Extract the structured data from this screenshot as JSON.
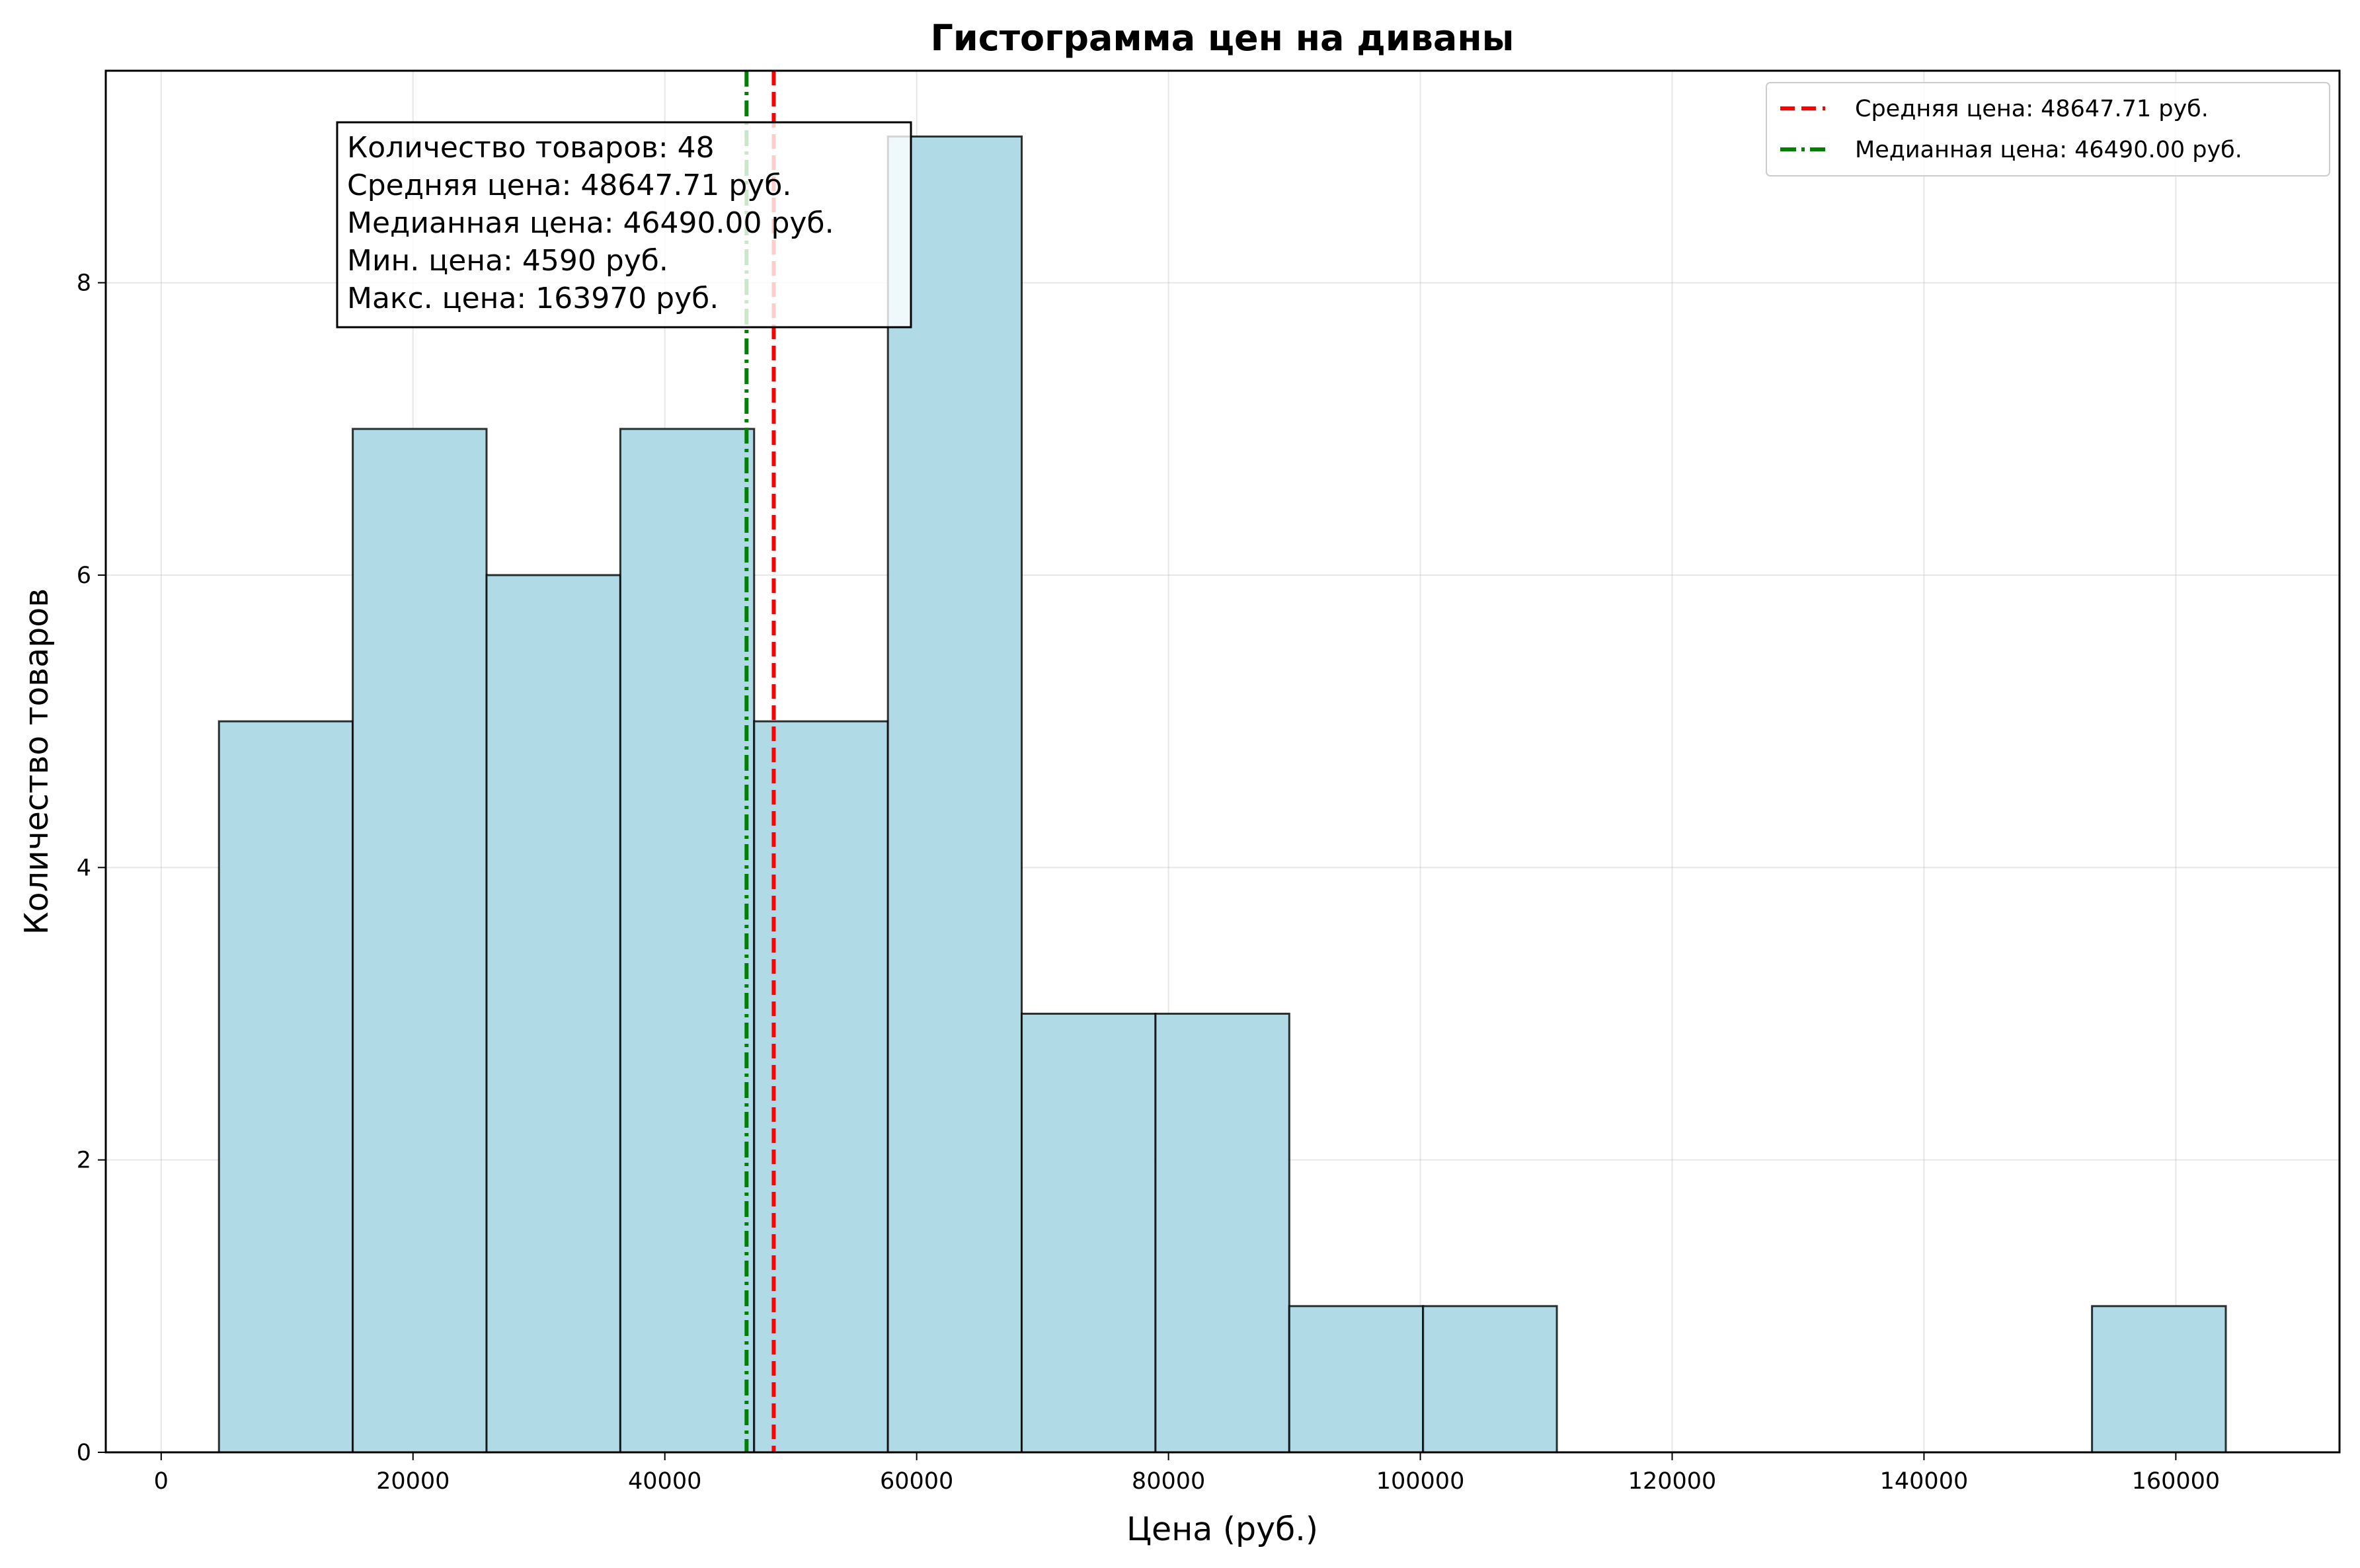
{
  "chart_data": {
    "type": "bar",
    "title": "Гистограмма цен на диваны",
    "xlabel": "Цена (руб.)",
    "ylabel": "Количество товаров",
    "xlim": [
      -4400,
      173000
    ],
    "ylim": [
      0,
      9.45
    ],
    "grid": true,
    "legend_position": "top-right",
    "bin_edges": [
      4590,
      15215.3,
      25840.7,
      36466,
      47091.3,
      57716.7,
      68342,
      78967.3,
      89592.7,
      100218,
      110843.3,
      121468.7,
      132094,
      142719.3,
      153344.7,
      163970
    ],
    "values": [
      5,
      7,
      6,
      7,
      5,
      9,
      3,
      3,
      1,
      1,
      0,
      0,
      0,
      0,
      1
    ],
    "bar_fill": "#add8e6",
    "bar_edge": "#000000",
    "x_ticks": [
      {
        "value": 0,
        "label": "0"
      },
      {
        "value": 20000,
        "label": "20000"
      },
      {
        "value": 40000,
        "label": "40000"
      },
      {
        "value": 60000,
        "label": "60000"
      },
      {
        "value": 80000,
        "label": "80000"
      },
      {
        "value": 100000,
        "label": "100000"
      },
      {
        "value": 120000,
        "label": "120000"
      },
      {
        "value": 140000,
        "label": "140000"
      },
      {
        "value": 160000,
        "label": "160000"
      }
    ],
    "y_ticks": [
      {
        "value": 0,
        "label": "0"
      },
      {
        "value": 2,
        "label": "2"
      },
      {
        "value": 4,
        "label": "4"
      },
      {
        "value": 6,
        "label": "6"
      },
      {
        "value": 8,
        "label": "8"
      }
    ],
    "reference_lines": [
      {
        "name": "Средняя цена: 48647.71 руб.",
        "x": 48647.71,
        "color": "#ff0000",
        "style": "dashed"
      },
      {
        "name": "Медианная цена: 46490.00 руб.",
        "x": 46490.0,
        "color": "#008000",
        "style": "dashdot"
      }
    ],
    "stats_box": [
      "Количество товаров: 48",
      "Средняя цена: 48647.71 руб.",
      "Медианная цена: 46490.00 руб.",
      "Мин. цена: 4590 руб.",
      "Макс. цена: 163970 руб."
    ]
  }
}
